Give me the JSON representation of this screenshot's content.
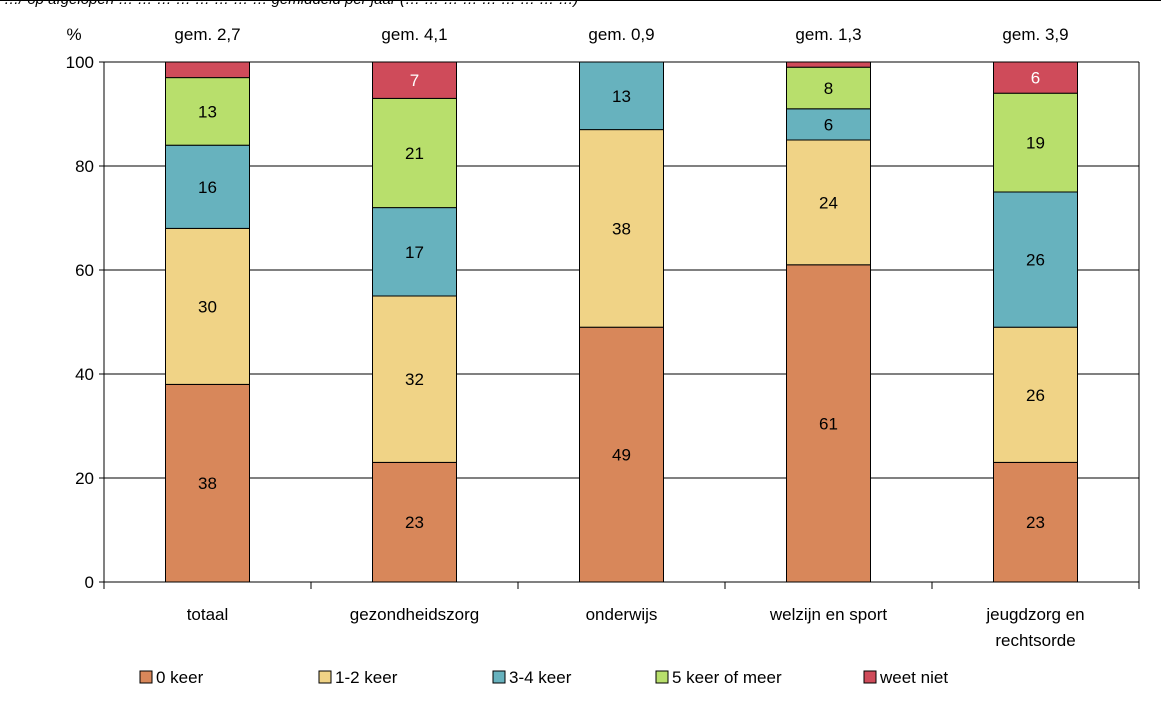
{
  "chart_data": {
    "type": "bar",
    "stacked": true,
    "title": "…/ op afgelopen … … … … … … … … gemiddeld per jaar (… … … … … … … … …)",
    "ylabel": "%",
    "ylim": [
      0,
      100
    ],
    "yticks": [
      0,
      20,
      40,
      60,
      80,
      100
    ],
    "grid": true,
    "legend_position": "bottom",
    "categories": [
      {
        "label_lines": [
          "totaal"
        ],
        "mean_label": "gem. 2,7"
      },
      {
        "label_lines": [
          "gezondheidszorg"
        ],
        "mean_label": "gem. 4,1"
      },
      {
        "label_lines": [
          "onderwijs"
        ],
        "mean_label": "gem. 0,9"
      },
      {
        "label_lines": [
          "welzijn en sport"
        ],
        "mean_label": "gem. 1,3"
      },
      {
        "label_lines": [
          "jeugdzorg en",
          "rechtsorde"
        ],
        "mean_label": "gem. 3,9"
      }
    ],
    "series": [
      {
        "name": "0 keer",
        "color": "#D8875A",
        "label_color": "#000000",
        "values": [
          38,
          23,
          49,
          61,
          23
        ]
      },
      {
        "name": "1-2 keer",
        "color": "#F0D386",
        "label_color": "#000000",
        "values": [
          30,
          32,
          38,
          24,
          26
        ]
      },
      {
        "name": "3-4 keer",
        "color": "#67B2BE",
        "label_color": "#000000",
        "values": [
          16,
          17,
          13,
          6,
          26
        ]
      },
      {
        "name": "5 keer of meer",
        "color": "#B8DF6C",
        "label_color": "#000000",
        "values": [
          13,
          21,
          0,
          8,
          19
        ]
      },
      {
        "name": "weet niet",
        "color": "#CF4B5A",
        "label_color": "#ffffff",
        "values": [
          3,
          7,
          0,
          1,
          6
        ]
      }
    ],
    "value_labels_hidden_below": 5
  }
}
